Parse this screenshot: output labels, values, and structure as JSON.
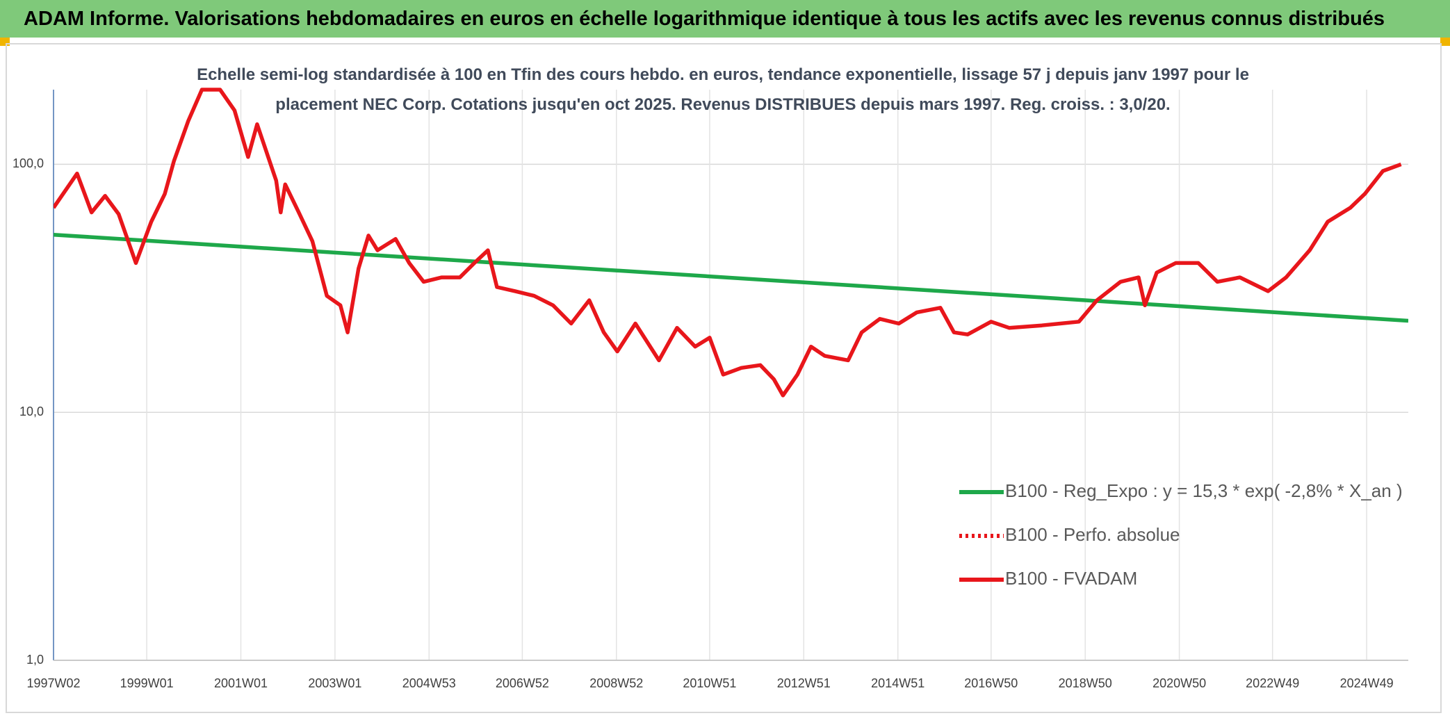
{
  "header": {
    "title": "ADAM Informe. Valorisations hebdomadaires en euros en échelle logarithmique identique à tous les actifs avec les revenus connus distribués"
  },
  "chart_data": {
    "type": "line",
    "subtitle": "Echelle semi-log standardisée à 100 en Tfin des cours hebdo. en euros, tendance exponentielle, lissage 57 j depuis janv 1997 pour le placement NEC Corp. Cotations jusqu'en oct 2025. Revenus DISTRIBUES depuis mars 1997. Reg. croiss. : 3,0/20.",
    "log_scale": true,
    "grid": true,
    "legend": "lower right",
    "xlim": [
      "1997W02",
      "2025W43"
    ],
    "xticks": [
      "1997W02",
      "1999W01",
      "2001W01",
      "2003W01",
      "2004W53",
      "2006W52",
      "2008W52",
      "2010W51",
      "2012W51",
      "2014W51",
      "2016W50",
      "2018W50",
      "2020W50",
      "2022W49",
      "2024W49"
    ],
    "ylim": [
      1,
      200
    ],
    "yticks": [
      {
        "value": 1,
        "label": "1,0"
      },
      {
        "value": 10,
        "label": "10,0"
      },
      {
        "value": 100,
        "label": "100,0"
      }
    ],
    "series": [
      {
        "name": "B100 - Reg_Expo : y = 15,3 * exp( -2,8% *  X_an )",
        "color": "#1ea84a",
        "style": "solid",
        "x": [
          "1997W02",
          "2025W43"
        ],
        "values": [
          52,
          23.4
        ]
      },
      {
        "name": "B100 - Perfo. absolue",
        "color": "#e8161b",
        "style": "dotted",
        "x": [],
        "values": []
      },
      {
        "name": "B100 - FVADAM",
        "color": "#e8161b",
        "style": "solid",
        "x": [
          "1997W02",
          "1997W28",
          "1997W44",
          "1998W07",
          "1998W22",
          "1998W41",
          "1999W06",
          "1999W21",
          "1999W31",
          "1999W47",
          "2000W10",
          "2000W30",
          "2000W46",
          "2001W09",
          "2001W19",
          "2001W40",
          "2001W45",
          "2001W50",
          "2002W13",
          "2002W28",
          "2002W44",
          "2003W07",
          "2003W15",
          "2003W27",
          "2003W38",
          "2003W48",
          "2004W16",
          "2004W31",
          "2004W47",
          "2005W15",
          "2005W35",
          "2005W51",
          "2006W14",
          "2006W24",
          "2006W44",
          "2007W13",
          "2007W34",
          "2008W02",
          "2008W22",
          "2008W38",
          "2009W01",
          "2009W21",
          "2009W47",
          "2010W15",
          "2010W35",
          "2010W51",
          "2011W14",
          "2011W34",
          "2012W03",
          "2012W18",
          "2012W28",
          "2012W44",
          "2013W07",
          "2013W22",
          "2013W48",
          "2014W11",
          "2014W31",
          "2014W52",
          "2015W20",
          "2015W46",
          "2016W09",
          "2016W24",
          "2016W50",
          "2017W18",
          "2018W02",
          "2018W43",
          "2019W11",
          "2019W37",
          "2020W05",
          "2020W12",
          "2020W25",
          "2020W46",
          "2021W19",
          "2021W40",
          "2022W13",
          "2022W44",
          "2023W12",
          "2023W38",
          "2024W06",
          "2024W31",
          "2024W47",
          "2025W15",
          "2025W35"
        ],
        "values": [
          66.8,
          91.8,
          64,
          74.6,
          63,
          40,
          58.7,
          76,
          103,
          150,
          200,
          200,
          165,
          107,
          145,
          86,
          64,
          83,
          64,
          49,
          29.5,
          27,
          21,
          38,
          51.6,
          45,
          50,
          40,
          33.6,
          35,
          35,
          40,
          45,
          32,
          30.8,
          29.5,
          27,
          22.8,
          28.3,
          21,
          17.6,
          22.8,
          16.2,
          21.9,
          18.4,
          20,
          14.2,
          15.1,
          15.5,
          13.6,
          11.7,
          14.2,
          18.4,
          16.9,
          16.2,
          21,
          23.8,
          22.8,
          25.3,
          26.4,
          21,
          20.6,
          23.2,
          21.9,
          22.4,
          23.2,
          28.3,
          33.6,
          35,
          27,
          36.6,
          40,
          40,
          33.6,
          35,
          30.8,
          35,
          45,
          58.7,
          66.8,
          76,
          94,
          100
        ]
      }
    ]
  }
}
